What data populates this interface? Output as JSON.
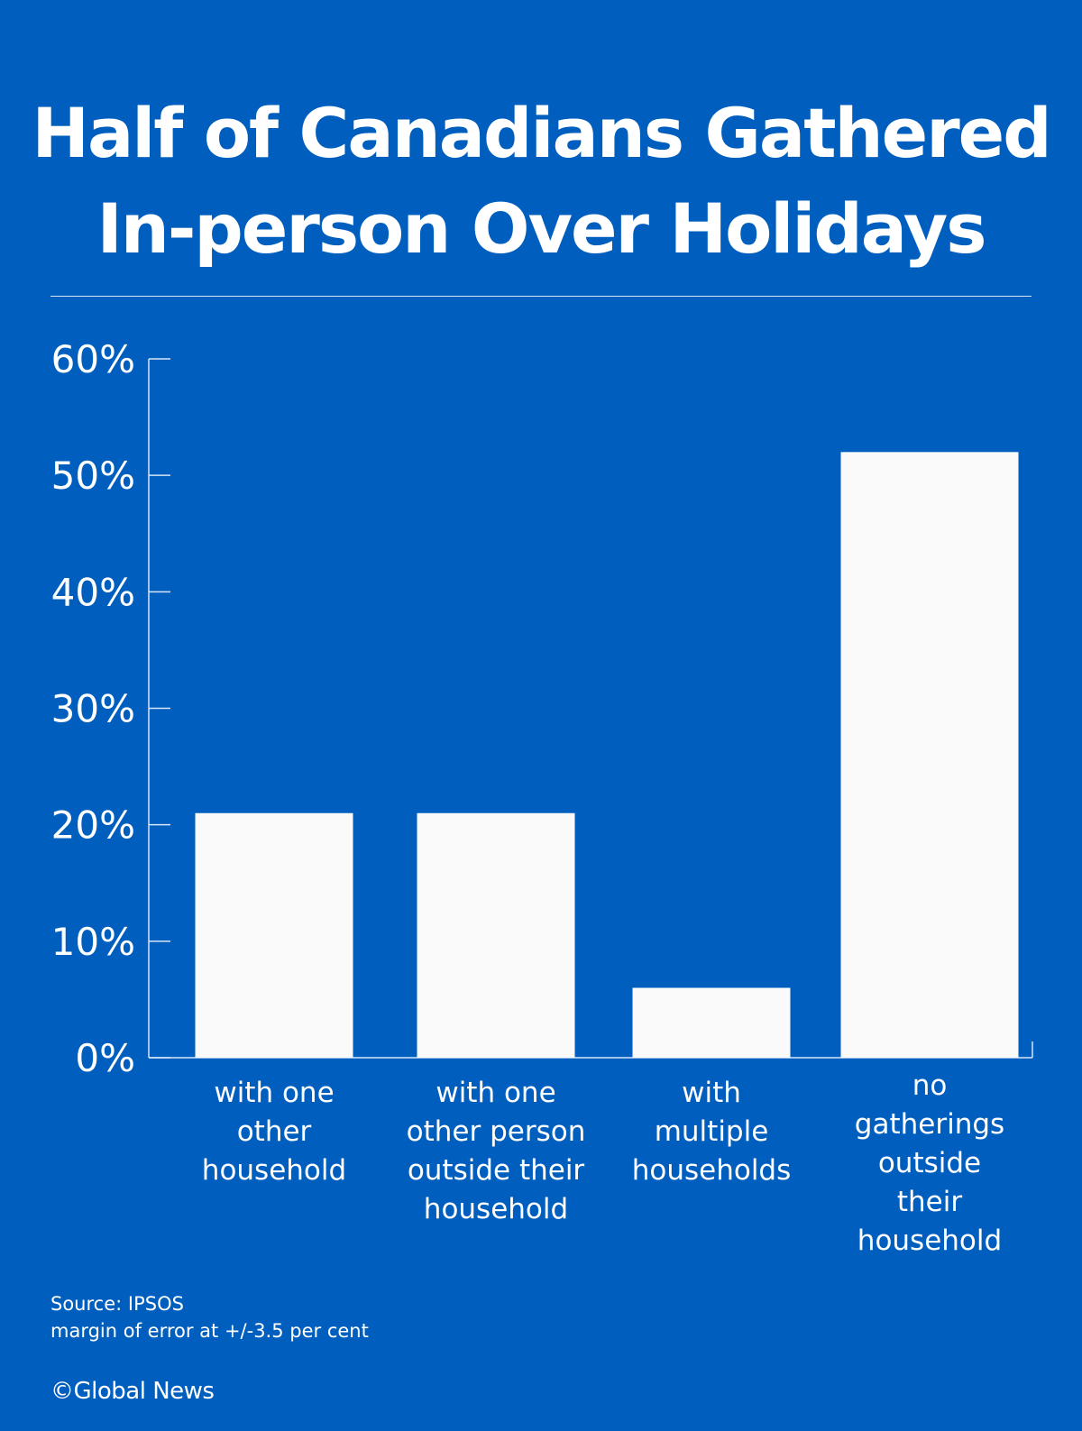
{
  "title_lines": [
    "Half of Canadians Gathered",
    "In-person Over Holidays"
  ],
  "footer": {
    "source": "Source: IPSOS",
    "margin_of_error": "margin of error at +/-3.5 per cent",
    "credit": "©Global News"
  },
  "colors": {
    "background": "#005fbe",
    "bar": "#fafafa",
    "text": "#ffffff"
  },
  "chart_data": {
    "type": "bar",
    "categories": [
      [
        "with one",
        "other",
        "household"
      ],
      [
        "with one",
        "other person",
        "outside their",
        "household"
      ],
      [
        "with",
        "multiple",
        "households"
      ],
      [
        "no",
        "gatherings",
        "outside",
        "their",
        "household"
      ]
    ],
    "values": [
      21,
      21,
      6,
      52
    ],
    "ylim": [
      0,
      60
    ],
    "yticks": [
      0,
      10,
      20,
      30,
      40,
      50,
      60
    ],
    "ytick_labels": [
      "0%",
      "10%",
      "20%",
      "30%",
      "40%",
      "50%",
      "60%"
    ],
    "grid": false,
    "legend": "none"
  }
}
